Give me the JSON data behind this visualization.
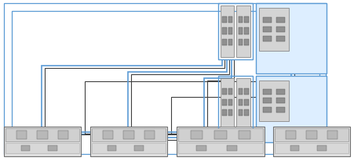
{
  "bg": "#ffffff",
  "blue": "#5b9bd5",
  "dark": "#404040",
  "mid": "#707070",
  "hba_face": "#d4d4d4",
  "hba_border": "#888888",
  "port_face": "#909090",
  "shelf_face": "#e0e0e0",
  "shelf_inner": "#d0d0d0",
  "ctrl_face": "#ddeeff",
  "ctrl_border": "#5b9bd5",
  "figw": 4.52,
  "figh": 2.07,
  "dpi": 100
}
